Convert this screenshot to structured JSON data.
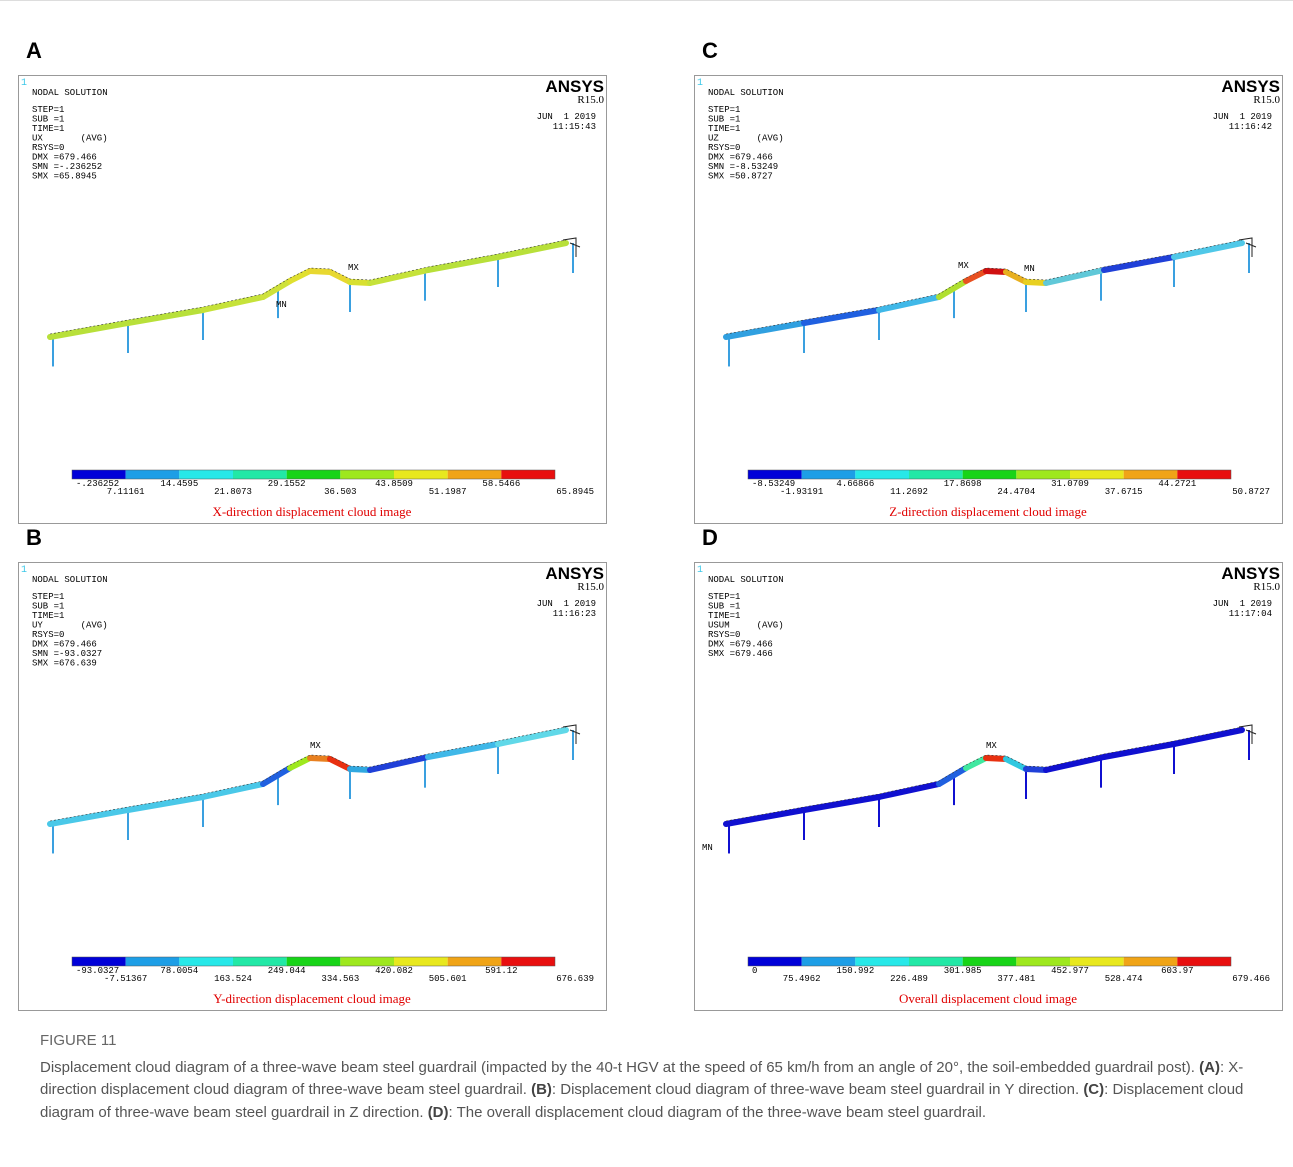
{
  "panels": [
    {
      "label": "A",
      "corner": "1",
      "solution": "NODAL SOLUTION",
      "info_lines": [
        "STEP=1",
        "SUB =1",
        "TIME=1",
        "UX       (AVG)",
        "RSYS=0",
        "DMX =679.466",
        "SMN =-.236252",
        "SMX =65.8945"
      ],
      "brand": "ANSYS",
      "version": "R15.0",
      "date": "JUN  1 2019",
      "time": "11:15:43",
      "markers": [
        "MX",
        "MN"
      ],
      "legend_values": [
        "-.236252",
        "7.11161",
        "14.4595",
        "21.8073",
        "29.1552",
        "36.503",
        "43.8509",
        "51.1987",
        "58.5466",
        "65.8945"
      ],
      "caption": "X-direction displacement cloud image"
    },
    {
      "label": "B",
      "corner": "1",
      "solution": "NODAL SOLUTION",
      "info_lines": [
        "STEP=1",
        "SUB =1",
        "TIME=1",
        "UY       (AVG)",
        "RSYS=0",
        "DMX =679.466",
        "SMN =-93.0327",
        "SMX =676.639"
      ],
      "brand": "ANSYS",
      "version": "R15.0",
      "date": "JUN  1 2019",
      "time": "11:16:23",
      "markers": [
        "MX"
      ],
      "legend_values": [
        "-93.0327",
        "-7.51367",
        "78.0054",
        "163.524",
        "249.044",
        "334.563",
        "420.082",
        "505.601",
        "591.12",
        "676.639"
      ],
      "caption": "Y-direction displacement cloud image"
    },
    {
      "label": "C",
      "corner": "1",
      "solution": "NODAL SOLUTION",
      "info_lines": [
        "STEP=1",
        "SUB =1",
        "TIME=1",
        "UZ       (AVG)",
        "RSYS=0",
        "DMX =679.466",
        "SMN =-8.53249",
        "SMX =50.8727"
      ],
      "brand": "ANSYS",
      "version": "R15.0",
      "date": "JUN  1 2019",
      "time": "11:16:42",
      "markers": [
        "MX",
        "MN"
      ],
      "legend_values": [
        "-8.53249",
        "-1.93191",
        "4.66866",
        "11.2692",
        "17.8698",
        "24.4704",
        "31.0709",
        "37.6715",
        "44.2721",
        "50.8727"
      ],
      "caption": "Z-direction displacement cloud image"
    },
    {
      "label": "D",
      "corner": "1",
      "solution": "NODAL SOLUTION",
      "info_lines": [
        "STEP=1",
        "SUB =1",
        "TIME=1",
        "USUM     (AVG)",
        "RSYS=0",
        "DMX =679.466",
        "SMX =679.466"
      ],
      "brand": "ANSYS",
      "version": "R15.0",
      "date": "JUN  1 2019",
      "time": "11:17:04",
      "markers": [
        "MX",
        "MN"
      ],
      "legend_values": [
        "0",
        "75.4962",
        "150.992",
        "226.489",
        "301.985",
        "377.481",
        "452.977",
        "528.474",
        "603.97",
        "679.466"
      ],
      "caption": "Overall displacement cloud image"
    }
  ],
  "figure": {
    "label": "FIGURE 11",
    "caption": [
      {
        "text": "Displacement cloud diagram of a three-wave beam steel guardrail (impacted by the 40-t HGV at the speed of 65 km/h from an angle of 20°, the soil-embedded guardrail post). "
      },
      {
        "text": "(A)",
        "bold": true
      },
      {
        "text": ": X-direction displacement cloud diagram of three-wave beam steel guardrail. "
      },
      {
        "text": "(B)",
        "bold": true
      },
      {
        "text": ": Displacement cloud diagram of three-wave beam steel guardrail in Y direction. "
      },
      {
        "text": "(C)",
        "bold": true
      },
      {
        "text": ": Displacement cloud diagram of three-wave beam steel guardrail in Z direction. "
      },
      {
        "text": "(D)",
        "bold": true
      },
      {
        "text": ": The overall displacement cloud diagram of the three-wave beam steel guardrail."
      }
    ]
  }
}
